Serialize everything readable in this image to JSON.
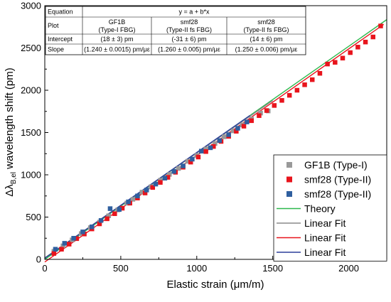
{
  "chart_data": {
    "type": "scatter",
    "xlabel": "Elastic strain (μm/m)",
    "ylabel_main": "Δλ",
    "ylabel_sub": "B,el",
    "ylabel_rest": " wavelength shift (pm)",
    "xlim": [
      0,
      2250
    ],
    "ylim": [
      0,
      3000
    ],
    "xticks": [
      0,
      500,
      1000,
      1500,
      2000
    ],
    "yticks": [
      0,
      500,
      1000,
      1500,
      2000,
      2500,
      3000
    ],
    "colors": {
      "gf1b": "#999999",
      "smf28_red": "#e8141c",
      "smf28_blue": "#2f5f9f",
      "theory": "#2db84d",
      "fit_gray": "#8a8a8a",
      "fit_red": "#e8141c",
      "fit_blue": "#2b3f9a"
    },
    "series": [
      {
        "name": "GF1B (Type-I)",
        "key": "gf1b",
        "points": [
          [
            60,
            95
          ],
          [
            120,
            160
          ],
          [
            180,
            230
          ],
          [
            240,
            305
          ],
          [
            300,
            375
          ],
          [
            360,
            440
          ],
          [
            420,
            515
          ],
          [
            480,
            585
          ],
          [
            540,
            665
          ],
          [
            580,
            710
          ],
          [
            640,
            795
          ],
          [
            700,
            860
          ],
          [
            760,
            935
          ],
          [
            820,
            1005
          ],
          [
            880,
            1075
          ],
          [
            940,
            1160
          ],
          [
            1000,
            1230
          ],
          [
            1060,
            1305
          ],
          [
            1120,
            1370
          ],
          [
            1180,
            1450
          ],
          [
            1240,
            1520
          ],
          [
            1300,
            1590
          ],
          [
            1360,
            1660
          ],
          [
            1420,
            1730
          ],
          [
            1470,
            1755
          ]
        ]
      },
      {
        "name": "smf28 (Type-II)",
        "key": "smf28_red",
        "points": [
          [
            60,
            70
          ],
          [
            110,
            120
          ],
          [
            160,
            180
          ],
          [
            210,
            245
          ],
          [
            260,
            300
          ],
          [
            310,
            360
          ],
          [
            360,
            420
          ],
          [
            410,
            480
          ],
          [
            460,
            540
          ],
          [
            510,
            605
          ],
          [
            560,
            665
          ],
          [
            610,
            725
          ],
          [
            660,
            785
          ],
          [
            710,
            850
          ],
          [
            760,
            910
          ],
          [
            810,
            970
          ],
          [
            860,
            1030
          ],
          [
            910,
            1090
          ],
          [
            960,
            1150
          ],
          [
            1010,
            1210
          ],
          [
            1060,
            1275
          ],
          [
            1110,
            1335
          ],
          [
            1160,
            1395
          ],
          [
            1210,
            1455
          ],
          [
            1260,
            1515
          ],
          [
            1310,
            1575
          ],
          [
            1360,
            1640
          ],
          [
            1410,
            1700
          ],
          [
            1460,
            1760
          ],
          [
            1510,
            1820
          ],
          [
            1560,
            1880
          ],
          [
            1610,
            1940
          ],
          [
            1660,
            2000
          ],
          [
            1710,
            2065
          ],
          [
            1760,
            2125
          ],
          [
            1810,
            2200
          ],
          [
            1860,
            2310
          ],
          [
            1910,
            2330
          ],
          [
            1960,
            2380
          ],
          [
            2010,
            2445
          ],
          [
            2060,
            2510
          ],
          [
            2110,
            2570
          ],
          [
            2160,
            2630
          ],
          [
            2210,
            2760
          ]
        ]
      },
      {
        "name": "smf28 (Type-II)",
        "key": "smf28_blue",
        "points": [
          [
            70,
            120
          ],
          [
            130,
            190
          ],
          [
            190,
            250
          ],
          [
            250,
            325
          ],
          [
            310,
            385
          ],
          [
            370,
            460
          ],
          [
            430,
            600
          ],
          [
            490,
            590
          ],
          [
            550,
            680
          ],
          [
            610,
            750
          ],
          [
            670,
            820
          ],
          [
            730,
            890
          ],
          [
            790,
            960
          ],
          [
            850,
            1040
          ],
          [
            910,
            1105
          ],
          [
            970,
            1185
          ],
          [
            1030,
            1280
          ],
          [
            1090,
            1320
          ],
          [
            1150,
            1405
          ],
          [
            1210,
            1475
          ],
          [
            1270,
            1550
          ],
          [
            1330,
            1625
          ]
        ]
      }
    ],
    "lines": [
      {
        "name": "Theory",
        "key": "theory",
        "x": [
          0,
          2250
        ],
        "y": [
          0,
          2835
        ]
      },
      {
        "name": "Linear Fit",
        "key": "fit_gray",
        "x": [
          0,
          1500
        ],
        "y": [
          18,
          1878
        ]
      },
      {
        "name": "Linear Fit",
        "key": "fit_red",
        "x": [
          0,
          2230
        ],
        "y": [
          -31,
          2779
        ]
      },
      {
        "name": "Linear Fit",
        "key": "fit_blue",
        "x": [
          0,
          1350
        ],
        "y": [
          14,
          1702
        ]
      }
    ],
    "legend_position": "bottom-right",
    "table": {
      "rows": [
        {
          "label": "Equation",
          "span": "y = a + b*x"
        },
        {
          "label": "Plot",
          "cells": [
            [
              "GF1B",
              "(Type-I FBG)"
            ],
            [
              "smf28",
              "(Type-II fs FBG)"
            ],
            [
              "smf28",
              "(Type-II fs FBG)"
            ]
          ]
        },
        {
          "label": "Intercept",
          "cells": [
            [
              "(18 ± 3) pm"
            ],
            [
              "(-31 ± 6) pm"
            ],
            [
              "(14 ± 6) pm"
            ]
          ]
        },
        {
          "label": "Slope",
          "cells": [
            [
              "(1.240 ± 0.0015) pm/με"
            ],
            [
              "(1.260 ± 0.005) pm/με"
            ],
            [
              "(1.250 ± 0.006) pm/με"
            ]
          ]
        }
      ]
    }
  }
}
